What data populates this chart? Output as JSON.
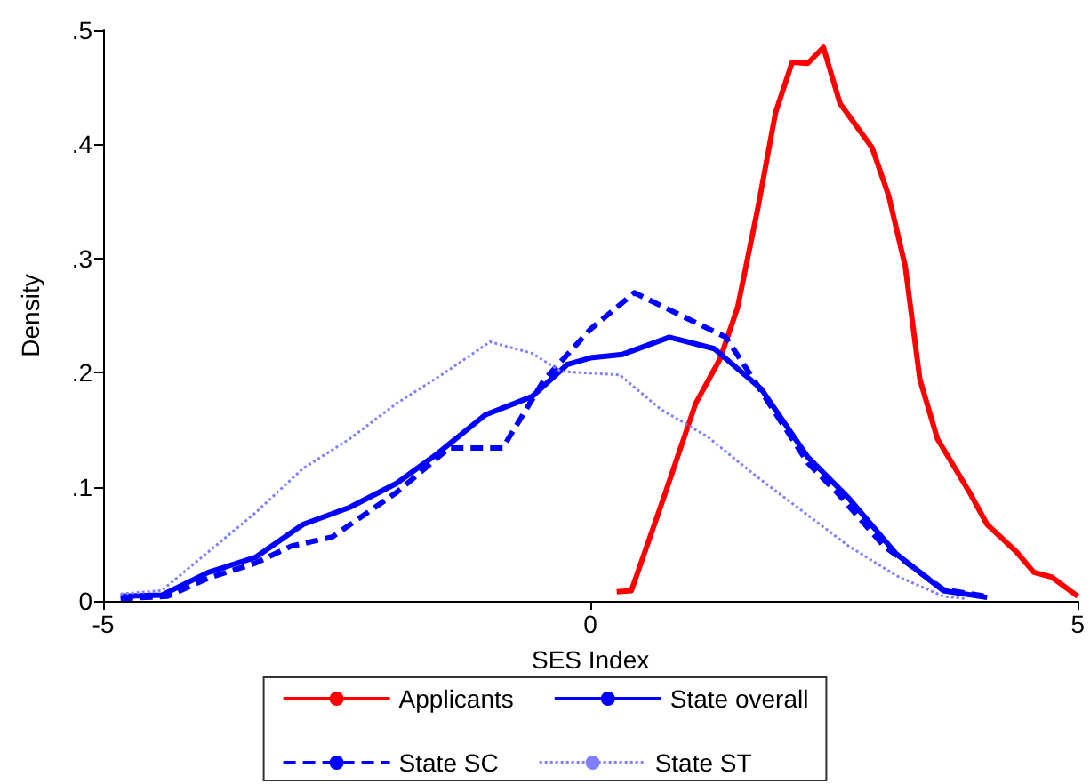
{
  "chart_data": {
    "type": "line",
    "xlabel": "SES Index",
    "ylabel": "Density",
    "xlim": [
      -5,
      5
    ],
    "xticks": [
      -5,
      0,
      5
    ],
    "ylim": [
      0,
      0.5
    ],
    "yticks": [
      0,
      {
        "value": 0.1,
        "label": ".1"
      },
      {
        "value": 0.2,
        "label": ".2"
      },
      {
        "value": 0.3,
        "label": ".3"
      },
      {
        "value": 0.4,
        "label": ".4"
      },
      {
        "value": 0.5,
        "label": ".5"
      }
    ],
    "grid": false,
    "legend": "bottom",
    "marker": "none",
    "series": [
      {
        "name": "Applicants",
        "color": "#ff0000",
        "line_style": "solid",
        "x": [
          0.27,
          0.42,
          0.75,
          1.08,
          1.33,
          1.51,
          1.72,
          1.9,
          2.07,
          2.23,
          2.39,
          2.56,
          2.89,
          3.06,
          3.23,
          3.38,
          3.56,
          3.89,
          4.07,
          4.37,
          4.55,
          4.73,
          5.0
        ],
        "values": [
          0.008,
          0.009,
          0.09,
          0.173,
          0.212,
          0.257,
          0.345,
          0.428,
          0.472,
          0.471,
          0.485,
          0.436,
          0.397,
          0.355,
          0.293,
          0.194,
          0.142,
          0.095,
          0.067,
          0.043,
          0.025,
          0.021,
          0.004
        ]
      },
      {
        "name": "State overall",
        "color": "#0000ff",
        "line_style": "solid",
        "x": [
          -4.82,
          -4.4,
          -3.92,
          -3.44,
          -2.95,
          -2.47,
          -1.99,
          -1.57,
          -1.08,
          -0.6,
          -0.24,
          0,
          0.33,
          0.81,
          1.27,
          1.75,
          2.23,
          2.65,
          3.14,
          3.62,
          4.07
        ],
        "values": [
          0.004,
          0.005,
          0.025,
          0.038,
          0.067,
          0.082,
          0.103,
          0.129,
          0.163,
          0.179,
          0.207,
          0.213,
          0.216,
          0.231,
          0.221,
          0.186,
          0.126,
          0.09,
          0.041,
          0.009,
          0.003
        ]
      },
      {
        "name": "State SC",
        "color": "#0000ff",
        "line_style": "dashed",
        "x": [
          -4.82,
          -4.34,
          -3.92,
          -3.44,
          -3.07,
          -2.65,
          -1.99,
          -1.45,
          -0.9,
          -0.48,
          0,
          0.45,
          1.39,
          1.75,
          2.23,
          2.53,
          3.01,
          3.62,
          4.05
        ],
        "values": [
          0.002,
          0.004,
          0.02,
          0.033,
          0.048,
          0.056,
          0.095,
          0.134,
          0.134,
          0.193,
          0.238,
          0.27,
          0.231,
          0.184,
          0.121,
          0.095,
          0.048,
          0.01,
          0.004
        ]
      },
      {
        "name": "State ST",
        "color": "#8080ff",
        "line_style": "dotted",
        "x": [
          -4.82,
          -4.4,
          -3.92,
          -3.44,
          -2.95,
          -2.47,
          -1.99,
          -1.51,
          -1.03,
          -0.6,
          -0.3,
          0.3,
          0.72,
          1.2,
          1.69,
          2.17,
          2.65,
          3.14,
          3.62,
          3.86
        ],
        "values": [
          0.006,
          0.009,
          0.043,
          0.077,
          0.116,
          0.142,
          0.173,
          0.199,
          0.227,
          0.217,
          0.201,
          0.198,
          0.168,
          0.144,
          0.11,
          0.079,
          0.048,
          0.022,
          0.004,
          0.002
        ]
      }
    ]
  }
}
